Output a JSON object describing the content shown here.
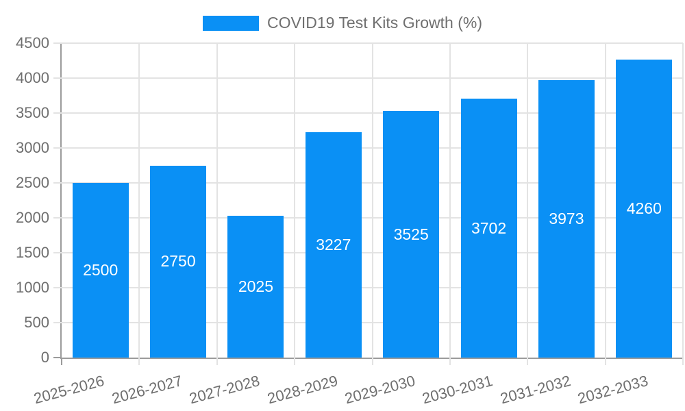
{
  "legend": {
    "label": "COVID19 Test Kits Growth (%)"
  },
  "colors": {
    "bar": "#0a90f5",
    "gridline": "#e3e3e3",
    "axis_line": "#9b9b9b",
    "tick_text": "#6f6f6f",
    "value_label_text": "#ffffff",
    "background": "#ffffff"
  },
  "chart_data": {
    "type": "bar",
    "title": "COVID19 Test Kits Growth (%)",
    "categories": [
      "2025-2026",
      "2026-2027",
      "2027-2028",
      "2028-2029",
      "2029-2030",
      "2030-2031",
      "2031-2032",
      "2032-2033"
    ],
    "values": [
      2500,
      2750,
      2025,
      3227,
      3525,
      3702,
      3973,
      4260
    ],
    "value_labels_shown": [
      "2500",
      "2750",
      "2025",
      "3227",
      "3525",
      "3702",
      "3973",
      "4260"
    ],
    "xlabel": "",
    "ylabel": "",
    "ylim": [
      0,
      4500
    ],
    "ytick_step": 500,
    "yticks": [
      0,
      500,
      1000,
      1500,
      2000,
      2500,
      3000,
      3500,
      4000,
      4500
    ],
    "ytick_labels": [
      "0",
      "500",
      "1000",
      "1500",
      "2000",
      "2500",
      "3000",
      "3500",
      "4000",
      "4500"
    ],
    "grid": true,
    "legend_position": "top-center",
    "value_label_position": "inside-center",
    "xtick_rotation_deg": -15
  }
}
